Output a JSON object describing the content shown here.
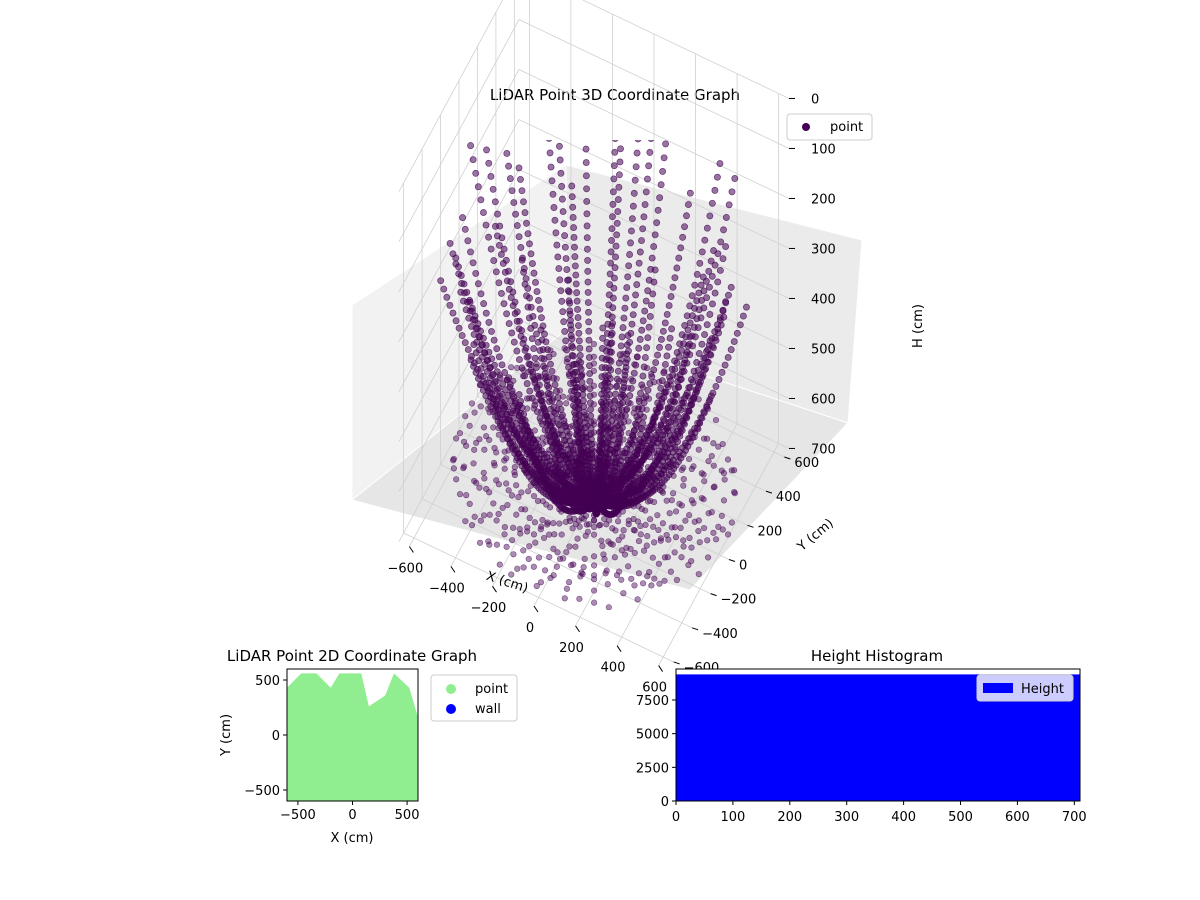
{
  "chart_data": [
    {
      "type": "scatter",
      "projection": "3d",
      "title": "LiDAR Point 3D Coordinate Graph",
      "xlabel": "X (cm)",
      "ylabel": "Y (cm)",
      "zlabel": "H (cm)",
      "xlim": [
        -650,
        650
      ],
      "ylim": [
        -650,
        650
      ],
      "zlim": [
        0,
        700
      ],
      "z_inverted": true,
      "x_ticks": [
        "−600",
        "−400",
        "−200",
        "0",
        "200",
        "400",
        "600"
      ],
      "y_ticks": [
        "−600",
        "−400",
        "−200",
        "0",
        "200",
        "400",
        "600"
      ],
      "z_ticks": [
        "0",
        "100",
        "200",
        "300",
        "400",
        "500",
        "600",
        "700"
      ],
      "grid": true,
      "legend": {
        "position": "top-right",
        "entries": [
          {
            "label": "point",
            "color": "#440154"
          }
        ]
      },
      "series": [
        {
          "name": "point",
          "color": "#440154"
        }
      ]
    },
    {
      "type": "scatter",
      "title": "LiDAR Point 2D Coordinate Graph",
      "xlabel": "X (cm)",
      "ylabel": "Y (cm)",
      "xlim": [
        -600,
        600
      ],
      "ylim": [
        -600,
        600
      ],
      "x_ticks": [
        "−500",
        "0",
        "500"
      ],
      "y_ticks": [
        "−500",
        "0",
        "500"
      ],
      "legend": {
        "position": "outside-right",
        "entries": [
          {
            "label": "point",
            "color": "#90ee90"
          },
          {
            "label": "wall",
            "color": "#0000ff"
          }
        ]
      },
      "series": [
        {
          "name": "point",
          "color": "#90ee90"
        },
        {
          "name": "wall",
          "color": "#0000ff"
        }
      ]
    },
    {
      "type": "bar",
      "title": "Height Histogram",
      "xlim": [
        0,
        710
      ],
      "ylim": [
        0,
        9800
      ],
      "x_ticks": [
        "0",
        "100",
        "200",
        "300",
        "400",
        "500",
        "600",
        "700"
      ],
      "y_ticks": [
        "0",
        "2500",
        "5000",
        "7500"
      ],
      "values": [
        9400
      ],
      "bin_range": [
        0,
        710
      ],
      "color": "#0000ff",
      "legend": {
        "position": "top-right",
        "entries": [
          {
            "label": "Height",
            "color": "#0000ff"
          }
        ]
      },
      "series": [
        {
          "name": "Height",
          "color": "#0000ff"
        }
      ]
    }
  ]
}
